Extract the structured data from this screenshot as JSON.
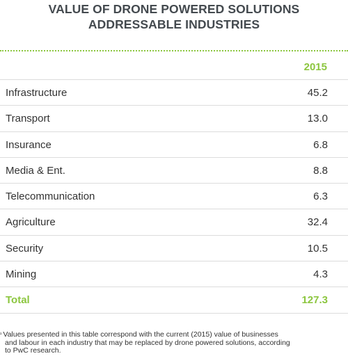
{
  "title": {
    "line1": "VALUE OF DRONE POWERED SOLUTIONS",
    "line2": "ADDRESSABLE INDUSTRIES"
  },
  "table": {
    "column_header": "2015",
    "rows": [
      {
        "label": "Infrastructure",
        "value": "45.2"
      },
      {
        "label": "Transport",
        "value": "13.0"
      },
      {
        "label": "Insurance",
        "value": "6.8"
      },
      {
        "label": "Media & Ent.",
        "value": "8.8"
      },
      {
        "label": "Telecommunication",
        "value": "6.3"
      },
      {
        "label": "Agriculture",
        "value": "32.4"
      },
      {
        "label": "Security",
        "value": "10.5"
      },
      {
        "label": "Mining",
        "value": "4.3"
      }
    ],
    "total": {
      "label": "Total",
      "value": "127.3"
    }
  },
  "footnote": {
    "marker": "¹",
    "line1": "Values presented in this table correspond with the current (2015) value of businesses",
    "line2": "and labour in each industry that may be replaced by drone powered solutions, according",
    "line3": "to PwC research."
  },
  "colors": {
    "accent": "#8cc63f",
    "title": "#444a4f",
    "text": "#333333",
    "rule": "#dcdcdc"
  },
  "chart_data": {
    "type": "table",
    "title": "VALUE OF DRONE POWERED SOLUTIONS ADDRESSABLE INDUSTRIES",
    "columns": [
      "",
      "2015"
    ],
    "categories": [
      "Infrastructure",
      "Transport",
      "Insurance",
      "Media & Ent.",
      "Telecommunication",
      "Agriculture",
      "Security",
      "Mining",
      "Total"
    ],
    "values": [
      45.2,
      13.0,
      6.8,
      8.8,
      6.3,
      32.4,
      10.5,
      4.3,
      127.3
    ]
  }
}
